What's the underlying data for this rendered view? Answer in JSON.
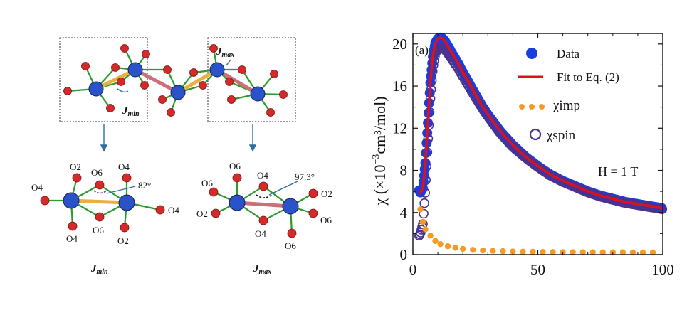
{
  "left_panel": {
    "labels": {
      "jmin_top": "J",
      "jmin_top_sub": "min",
      "jmax_top": "J",
      "jmax_top_sub": "max",
      "jmin_bottom": "J",
      "jmin_bottom_sub": "min",
      "jmax_bottom": "J",
      "jmax_bottom_sub": "max",
      "angle_min": "82°",
      "angle_max": "97.3°"
    },
    "min_cluster_atoms": [
      "O2",
      "O6",
      "O4",
      "O4",
      "O4",
      "O4",
      "O6",
      "O2"
    ],
    "max_cluster_atoms": [
      "O6",
      "O4",
      "O6",
      "O2",
      "O2",
      "O6",
      "O4",
      "O6"
    ],
    "colors": {
      "metal": "#2a52c9",
      "oxygen": "#d42a2a",
      "bond": "#2e9a2e",
      "jmin_bond": "#e8b040",
      "jmax_bond": "#c9707a",
      "box": "#333333",
      "arrow": "#2f6f9e"
    }
  },
  "chart_data": {
    "type": "scatter",
    "panel_label": "(a)",
    "xlabel": "",
    "ylabel_main": "χ (×10",
    "ylabel_exp": "−3",
    "ylabel_tail": "cm³/mol)",
    "xlim": [
      0,
      100
    ],
    "ylim": [
      0,
      21
    ],
    "x_ticks": [
      0,
      50,
      100
    ],
    "y_ticks": [
      0,
      4,
      8,
      12,
      16,
      20
    ],
    "annotation": "H = 1 T",
    "legend": [
      {
        "label": "Data",
        "marker": "filled-circle",
        "color": "#1a3de0"
      },
      {
        "label": "Fit to Eq. (2)",
        "marker": "line",
        "color": "#e0101a"
      },
      {
        "label": "χimp",
        "marker": "dots",
        "color": "#f59a24"
      },
      {
        "label": "χspin",
        "marker": "open-circle",
        "color": "#4a3290"
      }
    ],
    "series": [
      {
        "name": "Data",
        "color": "#1a3de0",
        "x": [
          2.5,
          3,
          4,
          5,
          6,
          7,
          8,
          9,
          10,
          11,
          12,
          13,
          14,
          16,
          18,
          20,
          22,
          25,
          28,
          30,
          35,
          40,
          45,
          50,
          55,
          60,
          65,
          70,
          75,
          80,
          85,
          90,
          95,
          100
        ],
        "y": [
          6.1,
          5.9,
          6.3,
          8.7,
          12.5,
          16.3,
          18.8,
          20.1,
          20.5,
          20.6,
          20.5,
          20.2,
          19.8,
          19.0,
          18.2,
          17.3,
          16.5,
          15.2,
          14.0,
          13.3,
          11.7,
          10.4,
          9.3,
          8.4,
          7.6,
          7.0,
          6.5,
          6.0,
          5.6,
          5.3,
          5.0,
          4.8,
          4.6,
          4.4
        ]
      },
      {
        "name": "Fit to Eq. (2)",
        "color": "#e0101a",
        "x": [
          2.5,
          3,
          4,
          5,
          6,
          7,
          8,
          9,
          10,
          11,
          12,
          13,
          14,
          16,
          18,
          20,
          22,
          25,
          28,
          30,
          35,
          40,
          45,
          50,
          55,
          60,
          65,
          70,
          75,
          80,
          85,
          90,
          95,
          100
        ],
        "y": [
          6.1,
          5.9,
          6.3,
          8.7,
          12.5,
          16.3,
          18.8,
          20.1,
          20.5,
          20.6,
          20.5,
          20.2,
          19.8,
          19.0,
          18.2,
          17.3,
          16.5,
          15.2,
          14.0,
          13.3,
          11.7,
          10.4,
          9.3,
          8.4,
          7.6,
          7.0,
          6.5,
          6.0,
          5.6,
          5.3,
          5.0,
          4.8,
          4.6,
          4.4
        ]
      },
      {
        "name": "χspin",
        "color": "#4a3290",
        "x": [
          2.5,
          3,
          4,
          5,
          6,
          7,
          8,
          9,
          10,
          11,
          12,
          13,
          14,
          16,
          18,
          20,
          22,
          25,
          28,
          30,
          35,
          40,
          45,
          50,
          55,
          60,
          65,
          70,
          75,
          80,
          85,
          90,
          95,
          100
        ],
        "y": [
          1.8,
          2.0,
          2.9,
          6.2,
          10.6,
          14.8,
          17.7,
          19.1,
          19.5,
          19.6,
          19.6,
          19.4,
          19.1,
          18.4,
          17.7,
          16.9,
          16.1,
          14.9,
          13.8,
          13.1,
          11.5,
          10.2,
          9.2,
          8.3,
          7.5,
          6.9,
          6.4,
          5.9,
          5.5,
          5.2,
          4.9,
          4.7,
          4.5,
          4.3
        ]
      },
      {
        "name": "χimp",
        "color": "#f59a24",
        "x": [
          3,
          4,
          5,
          7,
          9,
          11,
          14,
          17,
          20,
          24,
          28,
          32,
          36,
          40,
          44,
          48,
          52,
          56,
          60,
          64,
          68,
          72,
          76,
          80,
          84,
          88,
          92,
          96
        ],
        "y": [
          4.3,
          3.1,
          2.4,
          1.8,
          1.3,
          1.0,
          0.8,
          0.65,
          0.55,
          0.45,
          0.4,
          0.36,
          0.33,
          0.3,
          0.28,
          0.27,
          0.26,
          0.25,
          0.24,
          0.24,
          0.23,
          0.23,
          0.22,
          0.22,
          0.22,
          0.21,
          0.21,
          0.21
        ]
      }
    ]
  }
}
